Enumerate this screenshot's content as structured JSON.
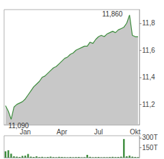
{
  "chart_data": [
    {
      "type": "line",
      "categories": [
        null,
        null,
        null,
        null,
        null,
        null,
        null,
        "Jan",
        null,
        null,
        null,
        null,
        null,
        null,
        null,
        null,
        null,
        null,
        null,
        null,
        "Apr",
        null,
        null,
        null,
        null,
        null,
        null,
        null,
        null,
        null,
        null,
        null,
        null,
        "Jul",
        null,
        null,
        null,
        null,
        null,
        null,
        null,
        null,
        null,
        null,
        null,
        null,
        "Okt",
        null
      ],
      "values": [
        11.19,
        11.15,
        11.09,
        11.18,
        11.2,
        11.21,
        11.22,
        11.24,
        11.27,
        11.3,
        11.33,
        11.35,
        11.37,
        11.4,
        11.41,
        11.43,
        11.45,
        11.47,
        11.48,
        11.5,
        11.52,
        11.54,
        11.55,
        11.57,
        11.58,
        11.6,
        11.61,
        11.62,
        11.63,
        11.63,
        11.66,
        11.65,
        11.68,
        11.7,
        11.71,
        11.7,
        11.72,
        11.73,
        11.74,
        11.73,
        11.75,
        11.76,
        11.77,
        11.8,
        11.86,
        11.71,
        11.7,
        11.7
      ],
      "color": "#3c8c3c",
      "ylim": [
        11.05,
        11.9
      ],
      "yticks": [
        {
          "value": 11.2,
          "label": "11,2"
        },
        {
          "value": 11.4,
          "label": "11,4"
        },
        {
          "value": 11.6,
          "label": "11,6"
        },
        {
          "value": 11.8,
          "label": "11,8"
        }
      ],
      "annotations": [
        {
          "value": 11.86,
          "label": "11,860"
        },
        {
          "value": 11.09,
          "label": "11,090"
        }
      ],
      "grid": false
    },
    {
      "type": "bar",
      "categories": [
        null,
        null,
        null,
        null,
        null,
        null,
        null,
        "Jan",
        null,
        null,
        null,
        null,
        null,
        null,
        null,
        null,
        null,
        null,
        null,
        null,
        "Apr",
        null,
        null,
        null,
        null,
        null,
        null,
        null,
        null,
        null,
        null,
        null,
        null,
        "Jul",
        null,
        null,
        null,
        null,
        null,
        null,
        null,
        null,
        null,
        null,
        null,
        null,
        "Okt",
        null
      ],
      "values": [
        95000,
        110000,
        60000,
        20000,
        15000,
        10000,
        25000,
        30000,
        55000,
        15000,
        10000,
        20000,
        8000,
        12000,
        5000,
        10000,
        15000,
        8000,
        6000,
        12000,
        10000,
        7000,
        5000,
        9000,
        6000,
        8000,
        10000,
        5000,
        7000,
        40000,
        12000,
        6000,
        8000,
        10000,
        5000,
        7000,
        6000,
        9000,
        12000,
        8000,
        10000,
        15000,
        280000,
        20000,
        30000,
        15000,
        10000,
        8000
      ],
      "color": "#3c8c3c",
      "ylim": [
        0,
        330000
      ],
      "yticks": [
        {
          "value": 150000,
          "label": "150T"
        },
        {
          "value": 300000,
          "label": "300T"
        }
      ],
      "tick_labels": "y",
      "grid": false
    }
  ]
}
